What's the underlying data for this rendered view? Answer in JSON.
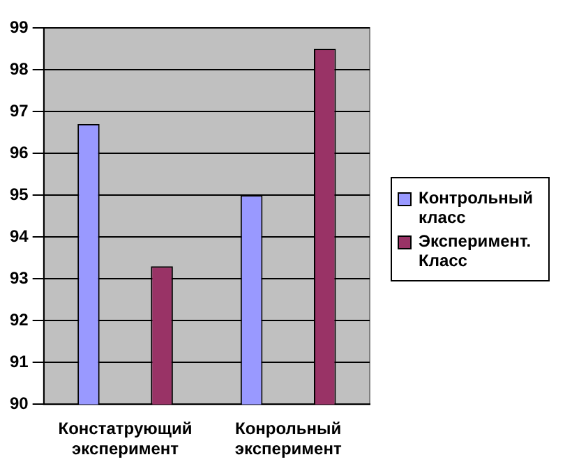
{
  "chart_data": {
    "type": "bar",
    "categories": [
      "Констатрующий эксперимент",
      "Конрольный эксперимент"
    ],
    "series": [
      {
        "name": "Контрольный класс",
        "color": "#9999ff",
        "values": [
          96.7,
          95.0
        ]
      },
      {
        "name": "Эксперимент. Класс",
        "color": "#993366",
        "values": [
          93.3,
          98.5
        ]
      }
    ],
    "ylim": [
      90,
      99
    ],
    "yticks": [
      90,
      91,
      92,
      93,
      94,
      95,
      96,
      97,
      98,
      99
    ],
    "grid": "y",
    "legend": "right"
  }
}
